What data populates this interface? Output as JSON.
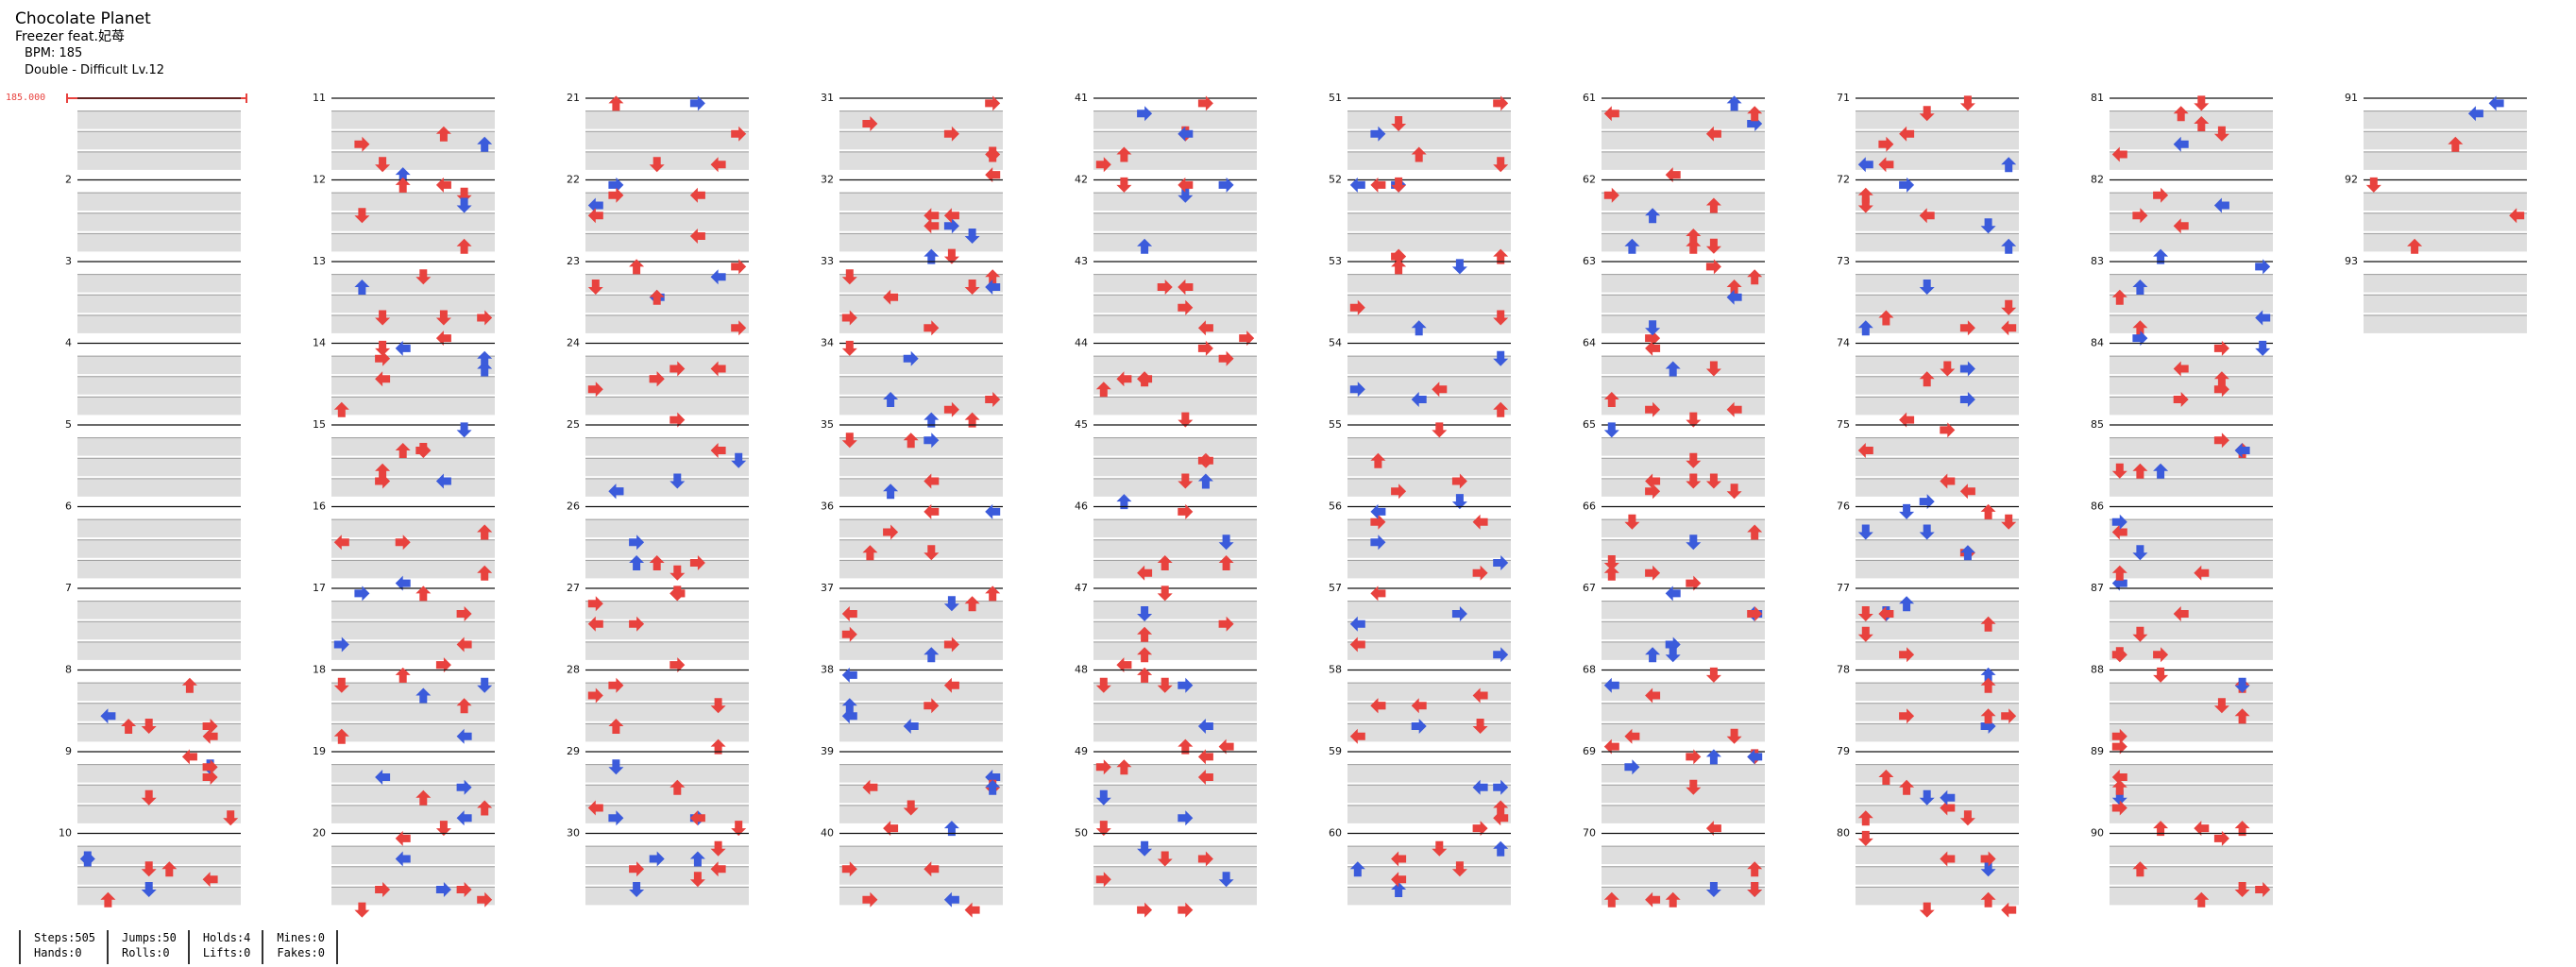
{
  "song": {
    "title": "Chocolate Planet",
    "artist": "Freezer feat.妃苺",
    "bpm": "BPM: 185",
    "difficulty": "Double - Difficult Lv.12"
  },
  "bpm_marker": "185.000",
  "chart": {
    "measures": 93,
    "columns": 10,
    "measures_per_column": 10,
    "lanes": 8,
    "colors": {
      "red": "#e8423e",
      "blue": "#3b5bdb",
      "hold": "#7fd37f",
      "shade": "#dedede"
    }
  },
  "stats": [
    {
      "a": "Steps:505",
      "b": "Hands:0"
    },
    {
      "a": "Jumps:50",
      "b": "Rolls:0"
    },
    {
      "a": "Holds:4",
      "b": "Lifts:0"
    },
    {
      "a": "Mines:0",
      "b": "Fakes:0"
    }
  ]
}
